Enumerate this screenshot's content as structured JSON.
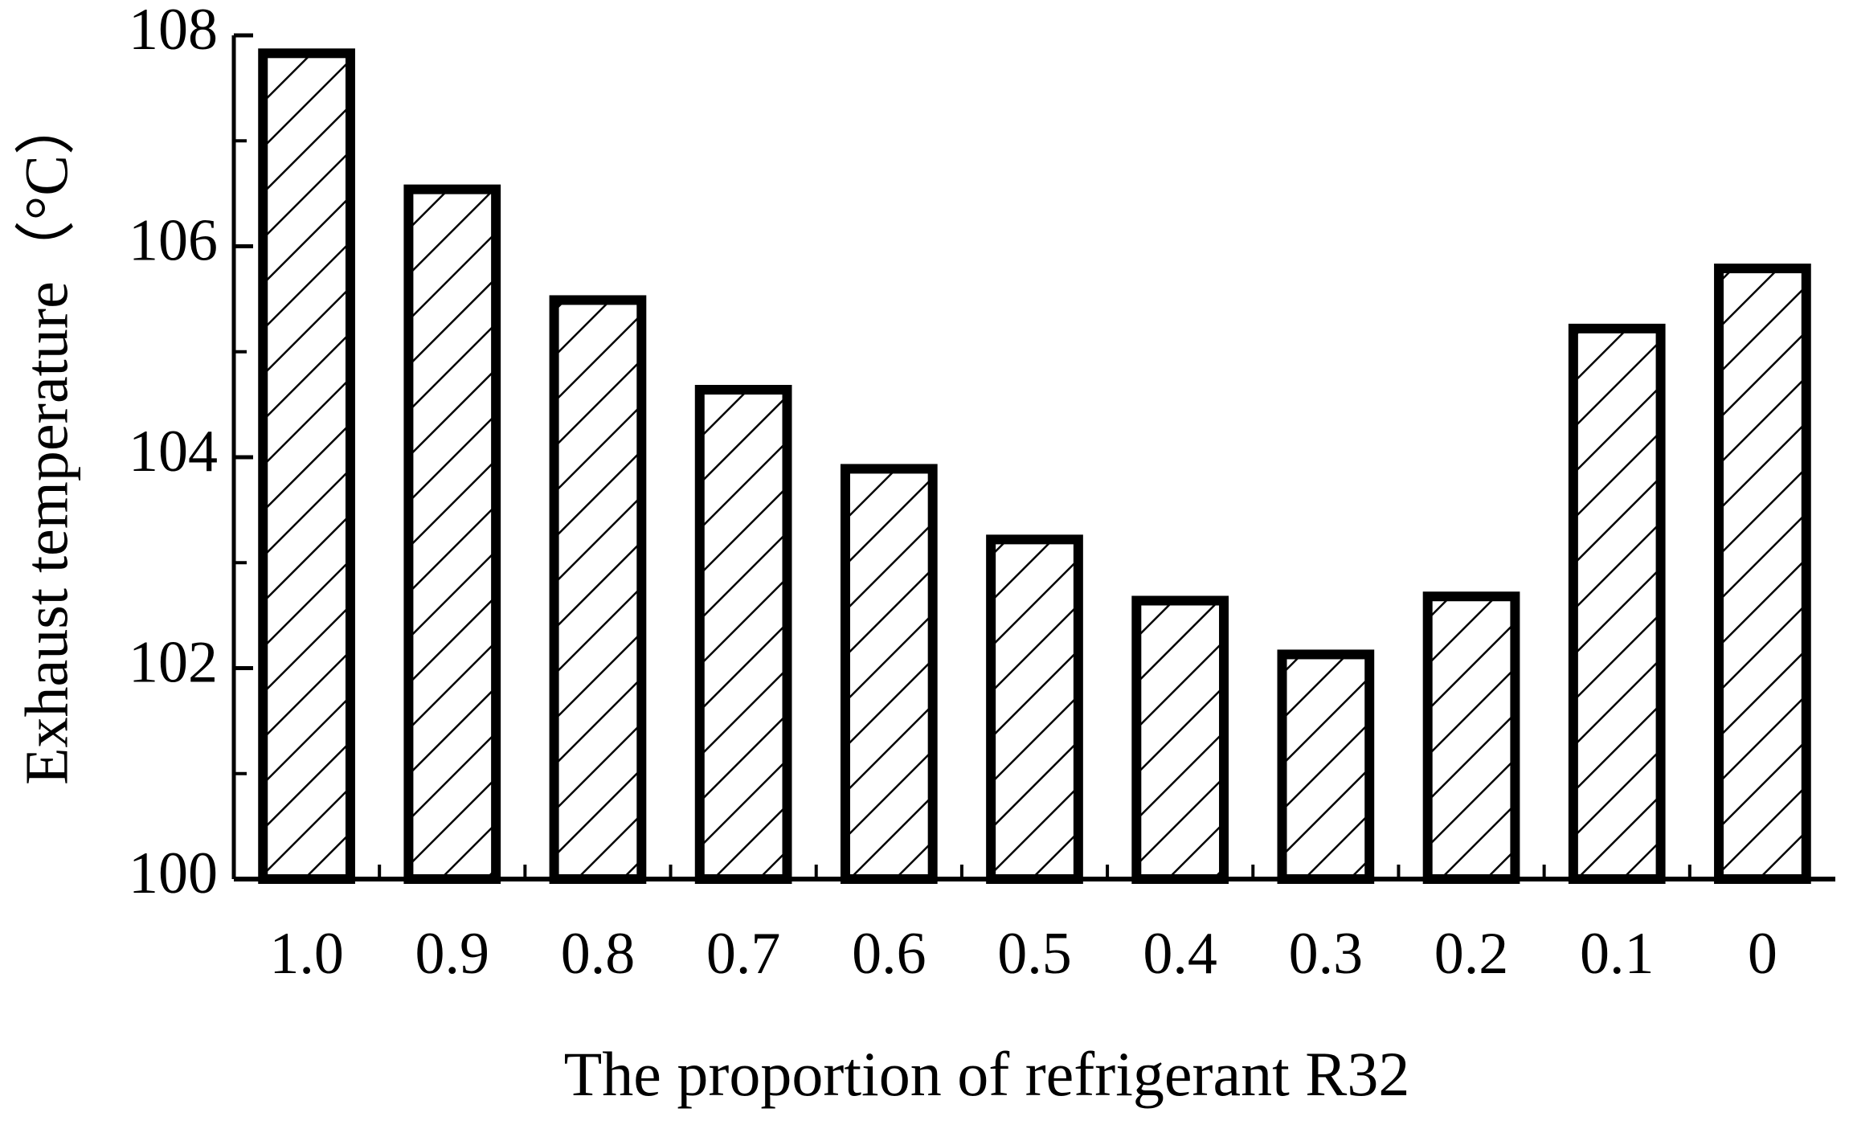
{
  "chart_data": {
    "type": "bar",
    "x_label": "The proportion of refrigerant R32",
    "y_label": "Exhaust temperature（°C）",
    "categories": [
      "1.0",
      "0.9",
      "0.8",
      "0.7",
      "0.6",
      "0.5",
      "0.4",
      "0.3",
      "0.2",
      "0.1",
      "0"
    ],
    "values": [
      107.83,
      106.54,
      105.49,
      104.64,
      103.89,
      103.22,
      102.64,
      102.13,
      102.68,
      105.22,
      105.79
    ],
    "color": "#000000",
    "ylim": [
      100,
      108
    ],
    "yticks": [
      100,
      102,
      104,
      106,
      108
    ],
    "minor_yticks": [
      101,
      103,
      105,
      107
    ],
    "grid": false,
    "hatch": true
  }
}
